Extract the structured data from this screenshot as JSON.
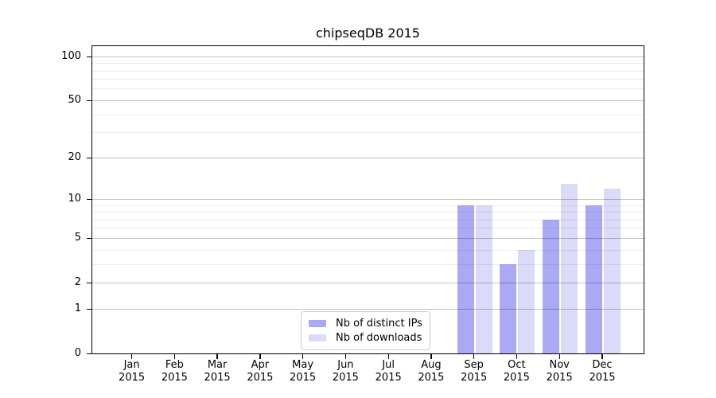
{
  "chart_data": {
    "type": "bar",
    "title": "chipseqDB 2015",
    "categories": [
      "Jan",
      "Feb",
      "Mar",
      "Apr",
      "May",
      "Jun",
      "Jul",
      "Aug",
      "Sep",
      "Oct",
      "Nov",
      "Dec"
    ],
    "category_year": "2015",
    "series": [
      {
        "name": "Nb of distinct IPs",
        "color": "#a9a9f5",
        "values": [
          0,
          0,
          0,
          0,
          0,
          0,
          0,
          0,
          9,
          3,
          7,
          9
        ]
      },
      {
        "name": "Nb of downloads",
        "color": "#dadaf9",
        "values": [
          0,
          0,
          0,
          0,
          0,
          0,
          0,
          0,
          9,
          4,
          13,
          12
        ]
      }
    ],
    "xlabel": "",
    "ylabel": "",
    "yscale": "log1p",
    "ylim": [
      0,
      120
    ],
    "yticks": [
      0,
      1,
      2,
      5,
      10,
      20,
      50,
      100
    ],
    "yticks_minor": [
      3,
      4,
      6,
      7,
      8,
      9,
      30,
      40,
      60,
      70,
      80,
      90
    ],
    "grid": "horizontal",
    "legend_position": "inside-bottom-center"
  },
  "colors": {
    "bar_ips": "#a9a9f5",
    "bar_downloads": "#dadaf9",
    "grid_major": "rgba(0,0,0,0.24)",
    "grid_minor": "rgba(0,0,0,0.08)",
    "spine": "#000000",
    "text": "#000000",
    "legend_border": "#cccccc",
    "legend_background": "#ffffff"
  }
}
